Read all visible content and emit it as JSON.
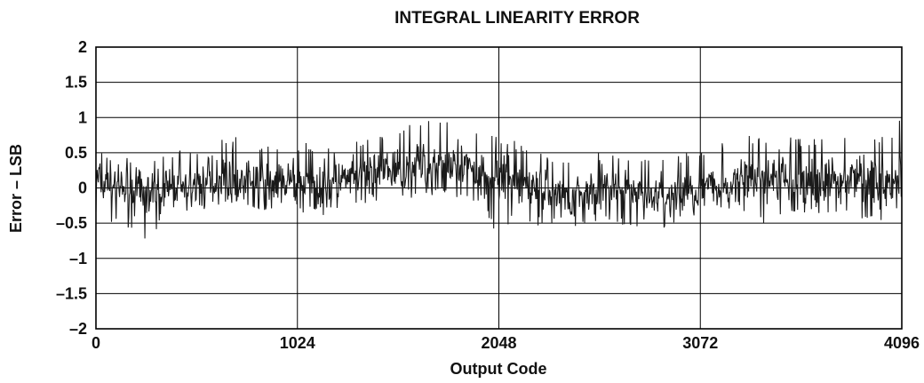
{
  "chart_data": {
    "type": "line",
    "title": "INTEGRAL LINEARITY ERROR",
    "xlabel": "Output Code",
    "ylabel": "Error – LSB",
    "xlim": [
      0,
      4096
    ],
    "ylim": [
      -2,
      2
    ],
    "x_ticks": [
      0,
      1024,
      2048,
      3072,
      4096
    ],
    "x_tick_labels": [
      "0",
      "1024",
      "2048",
      "3072",
      "4096"
    ],
    "y_ticks": [
      -2,
      -1.5,
      -1,
      -0.5,
      0,
      0.5,
      1,
      1.5,
      2
    ],
    "y_tick_labels": [
      "–2",
      "–1.5",
      "–1",
      "–0.5",
      "0",
      "0.5",
      "1",
      "1.5",
      "2"
    ],
    "grid": true,
    "series": [
      {
        "x": [
          0,
          64,
          128,
          192,
          256,
          320,
          384,
          448,
          512,
          576,
          640,
          704,
          768,
          832,
          896,
          960,
          1024,
          1088,
          1152,
          1216,
          1280,
          1344,
          1408,
          1472,
          1536,
          1600,
          1664,
          1728,
          1792,
          1856,
          1920,
          1984,
          2048,
          2112,
          2176,
          2240,
          2304,
          2368,
          2432,
          2496,
          2560,
          2624,
          2688,
          2752,
          2816,
          2880,
          2944,
          3008,
          3072,
          3136,
          3200,
          3264,
          3328,
          3392,
          3456,
          3520,
          3584,
          3648,
          3712,
          3776,
          3840,
          3904,
          3968,
          4032,
          4096
        ],
        "y": [
          0.1,
          0.05,
          0.0,
          -0.05,
          -0.1,
          -0.05,
          0.0,
          0.0,
          0.05,
          0.1,
          0.15,
          0.15,
          0.1,
          0.05,
          0.05,
          0.1,
          0.1,
          0.05,
          0.0,
          0.05,
          0.1,
          0.15,
          0.2,
          0.2,
          0.25,
          0.3,
          0.3,
          0.35,
          0.3,
          0.25,
          0.25,
          0.2,
          0.15,
          0.1,
          0.05,
          0.0,
          -0.05,
          -0.1,
          -0.1,
          -0.05,
          0.0,
          0.0,
          -0.05,
          -0.1,
          -0.1,
          -0.15,
          -0.1,
          -0.05,
          -0.05,
          0.0,
          0.05,
          0.1,
          0.1,
          0.15,
          0.15,
          0.1,
          0.05,
          0.05,
          0.1,
          0.1,
          0.15,
          0.15,
          0.1,
          0.05,
          0.0
        ],
        "min": [
          -0.45,
          -0.5,
          -0.55,
          -0.6,
          -0.75,
          -0.55,
          -0.45,
          -0.4,
          -0.35,
          -0.3,
          -0.25,
          -0.2,
          -0.3,
          -0.35,
          -0.35,
          -0.3,
          -0.35,
          -0.4,
          -0.4,
          -0.35,
          -0.3,
          -0.25,
          -0.2,
          -0.2,
          -0.15,
          -0.15,
          -0.1,
          -0.1,
          -0.15,
          -0.2,
          -0.25,
          -0.35,
          -0.85,
          -0.4,
          -0.55,
          -0.6,
          -0.6,
          -0.6,
          -0.55,
          -0.55,
          -0.5,
          -0.5,
          -0.55,
          -0.6,
          -0.6,
          -0.65,
          -0.6,
          -0.55,
          -0.45,
          -0.4,
          -0.35,
          -0.35,
          -0.4,
          -0.55,
          -0.5,
          -0.45,
          -0.4,
          -0.4,
          -0.35,
          -0.4,
          -0.4,
          -0.45,
          -0.5,
          -0.5,
          -0.9
        ],
        "max": [
          0.65,
          0.45,
          0.45,
          0.4,
          0.35,
          0.45,
          0.5,
          0.55,
          0.6,
          0.65,
          0.7,
          0.75,
          0.7,
          0.65,
          0.6,
          0.6,
          0.65,
          0.65,
          0.6,
          0.6,
          0.65,
          0.7,
          0.75,
          0.8,
          0.85,
          0.9,
          0.95,
          1.0,
          0.95,
          0.9,
          0.85,
          0.8,
          0.75,
          0.7,
          0.6,
          0.55,
          0.5,
          0.45,
          0.45,
          0.5,
          0.5,
          0.5,
          0.45,
          0.4,
          0.45,
          0.4,
          0.45,
          0.5,
          0.55,
          0.6,
          0.65,
          0.7,
          0.75,
          0.75,
          0.8,
          0.75,
          0.7,
          0.7,
          0.75,
          0.75,
          0.8,
          0.8,
          0.75,
          0.7,
          1.05
        ]
      }
    ]
  }
}
